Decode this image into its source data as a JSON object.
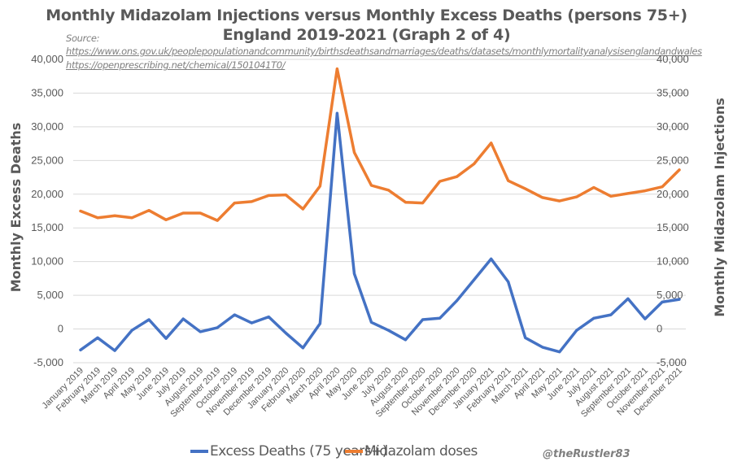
{
  "chart_data": {
    "type": "line",
    "title": "Monthly Midazolam Injections versus Monthly Excess Deaths (persons 75+)",
    "subtitle": "England 2019-2021 (Graph 2 of 4)",
    "source_label": "Source:",
    "source_links": [
      "https://www.ons.gov.uk/peoplepopulationandcommunity/birthsdeathsandmarriages/deaths/datasets/monthlymortalityanalysisenglandandwales",
      "https://openprescribing.net/chemical/1501041T0/"
    ],
    "ylabel": "Monthly Excess Deaths",
    "y2label": "Monthly Midazolam Injections",
    "ylim": [
      -5000,
      40000
    ],
    "y2lim": [
      -5000,
      40000
    ],
    "yticks": [
      "-5,000",
      "0",
      "5,000",
      "10,000",
      "15,000",
      "20,000",
      "25,000",
      "30,000",
      "35,000",
      "40,000"
    ],
    "ytick_values": [
      -5000,
      0,
      5000,
      10000,
      15000,
      20000,
      25000,
      30000,
      35000,
      40000
    ],
    "grid": true,
    "legend_position": "bottom",
    "categories": [
      "January 2019",
      "February 2019",
      "March 2019",
      "April 2019",
      "May 2019",
      "June 2019",
      "July 2019",
      "August 2019",
      "September 2019",
      "October 2019",
      "November 2019",
      "December 2019",
      "January 2020",
      "February 2020",
      "March 2020",
      "April 2020",
      "May 2020",
      "June 2020",
      "July 2020",
      "August 2020",
      "September 2020",
      "October 2020",
      "November 2020",
      "December 2020",
      "January 2021",
      "February 2021",
      "March 2021",
      "April 2021",
      "May 2021",
      "June 2021",
      "July 2021",
      "August 2021",
      "September 2021",
      "October 2021",
      "November 2021",
      "December 2021"
    ],
    "series": [
      {
        "name": "Excess Deaths (75 years+)",
        "color": "#4472c4",
        "axis": "left",
        "values": [
          -3100,
          -1300,
          -3200,
          -200,
          1400,
          -1400,
          1500,
          -400,
          200,
          2100,
          900,
          1800,
          -600,
          -2800,
          800,
          32000,
          8200,
          1000,
          -200,
          -1600,
          1400,
          1600,
          4200,
          7300,
          10400,
          7000,
          -1300,
          -2700,
          -3400,
          -200,
          1600,
          2100,
          4500,
          1500,
          4000,
          4400
        ]
      },
      {
        "name": "Midazolam doses",
        "color": "#ed7d31",
        "axis": "right",
        "values": [
          17500,
          16500,
          16800,
          16500,
          17600,
          16200,
          17200,
          17200,
          16100,
          18700,
          18900,
          19800,
          19900,
          17800,
          21200,
          38600,
          26200,
          21300,
          20600,
          18800,
          18700,
          21900,
          22600,
          24500,
          27600,
          22000,
          20800,
          19500,
          19000,
          19600,
          21000,
          19700,
          20100,
          20500,
          21100,
          23600
        ]
      }
    ]
  },
  "credit": "@theRustler83"
}
